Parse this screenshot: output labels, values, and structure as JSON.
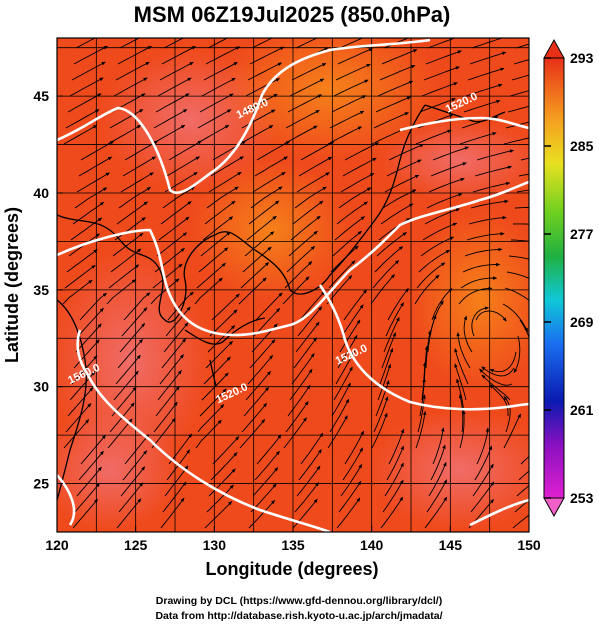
{
  "title": "MSM 06Z19Jul2025 (850.0hPa)",
  "x_axis": {
    "label": "Longitude (degrees)",
    "range": [
      120,
      150
    ],
    "ticks": [
      120,
      125,
      130,
      135,
      140,
      145,
      150
    ]
  },
  "y_axis": {
    "label": "Latitude  (degrees)",
    "range": [
      22.5,
      48
    ],
    "ticks": [
      25,
      30,
      35,
      40,
      45
    ]
  },
  "colorbar": {
    "min": 253,
    "max": 293,
    "ticks": [
      253,
      261,
      269,
      277,
      285,
      293
    ]
  },
  "contours": [
    {
      "label": "1480.0",
      "lon": 132.5,
      "lat": 44.2
    },
    {
      "label": "1520.0",
      "lon": 138.8,
      "lat": 31.5
    },
    {
      "label": "1520.0",
      "lon": 145.8,
      "lat": 44.5
    },
    {
      "label": "1520.0",
      "lon": 131.2,
      "lat": 29.5
    },
    {
      "label": "1560.0",
      "lon": 121.8,
      "lat": 30.5
    }
  ],
  "credits": {
    "line1": "Drawing by DCL (https://www.gfd-dennou.org/library/dcl/)",
    "line2": "Data from http://database.rish.kyoto-u.ac.jp/arch/jmadata/"
  },
  "colors": {
    "field_base": "#ef4a1c",
    "field_warm": "#f06a58",
    "field_cool": "#f5881e",
    "contour": "#ffffff",
    "streamline": "#000000"
  }
}
